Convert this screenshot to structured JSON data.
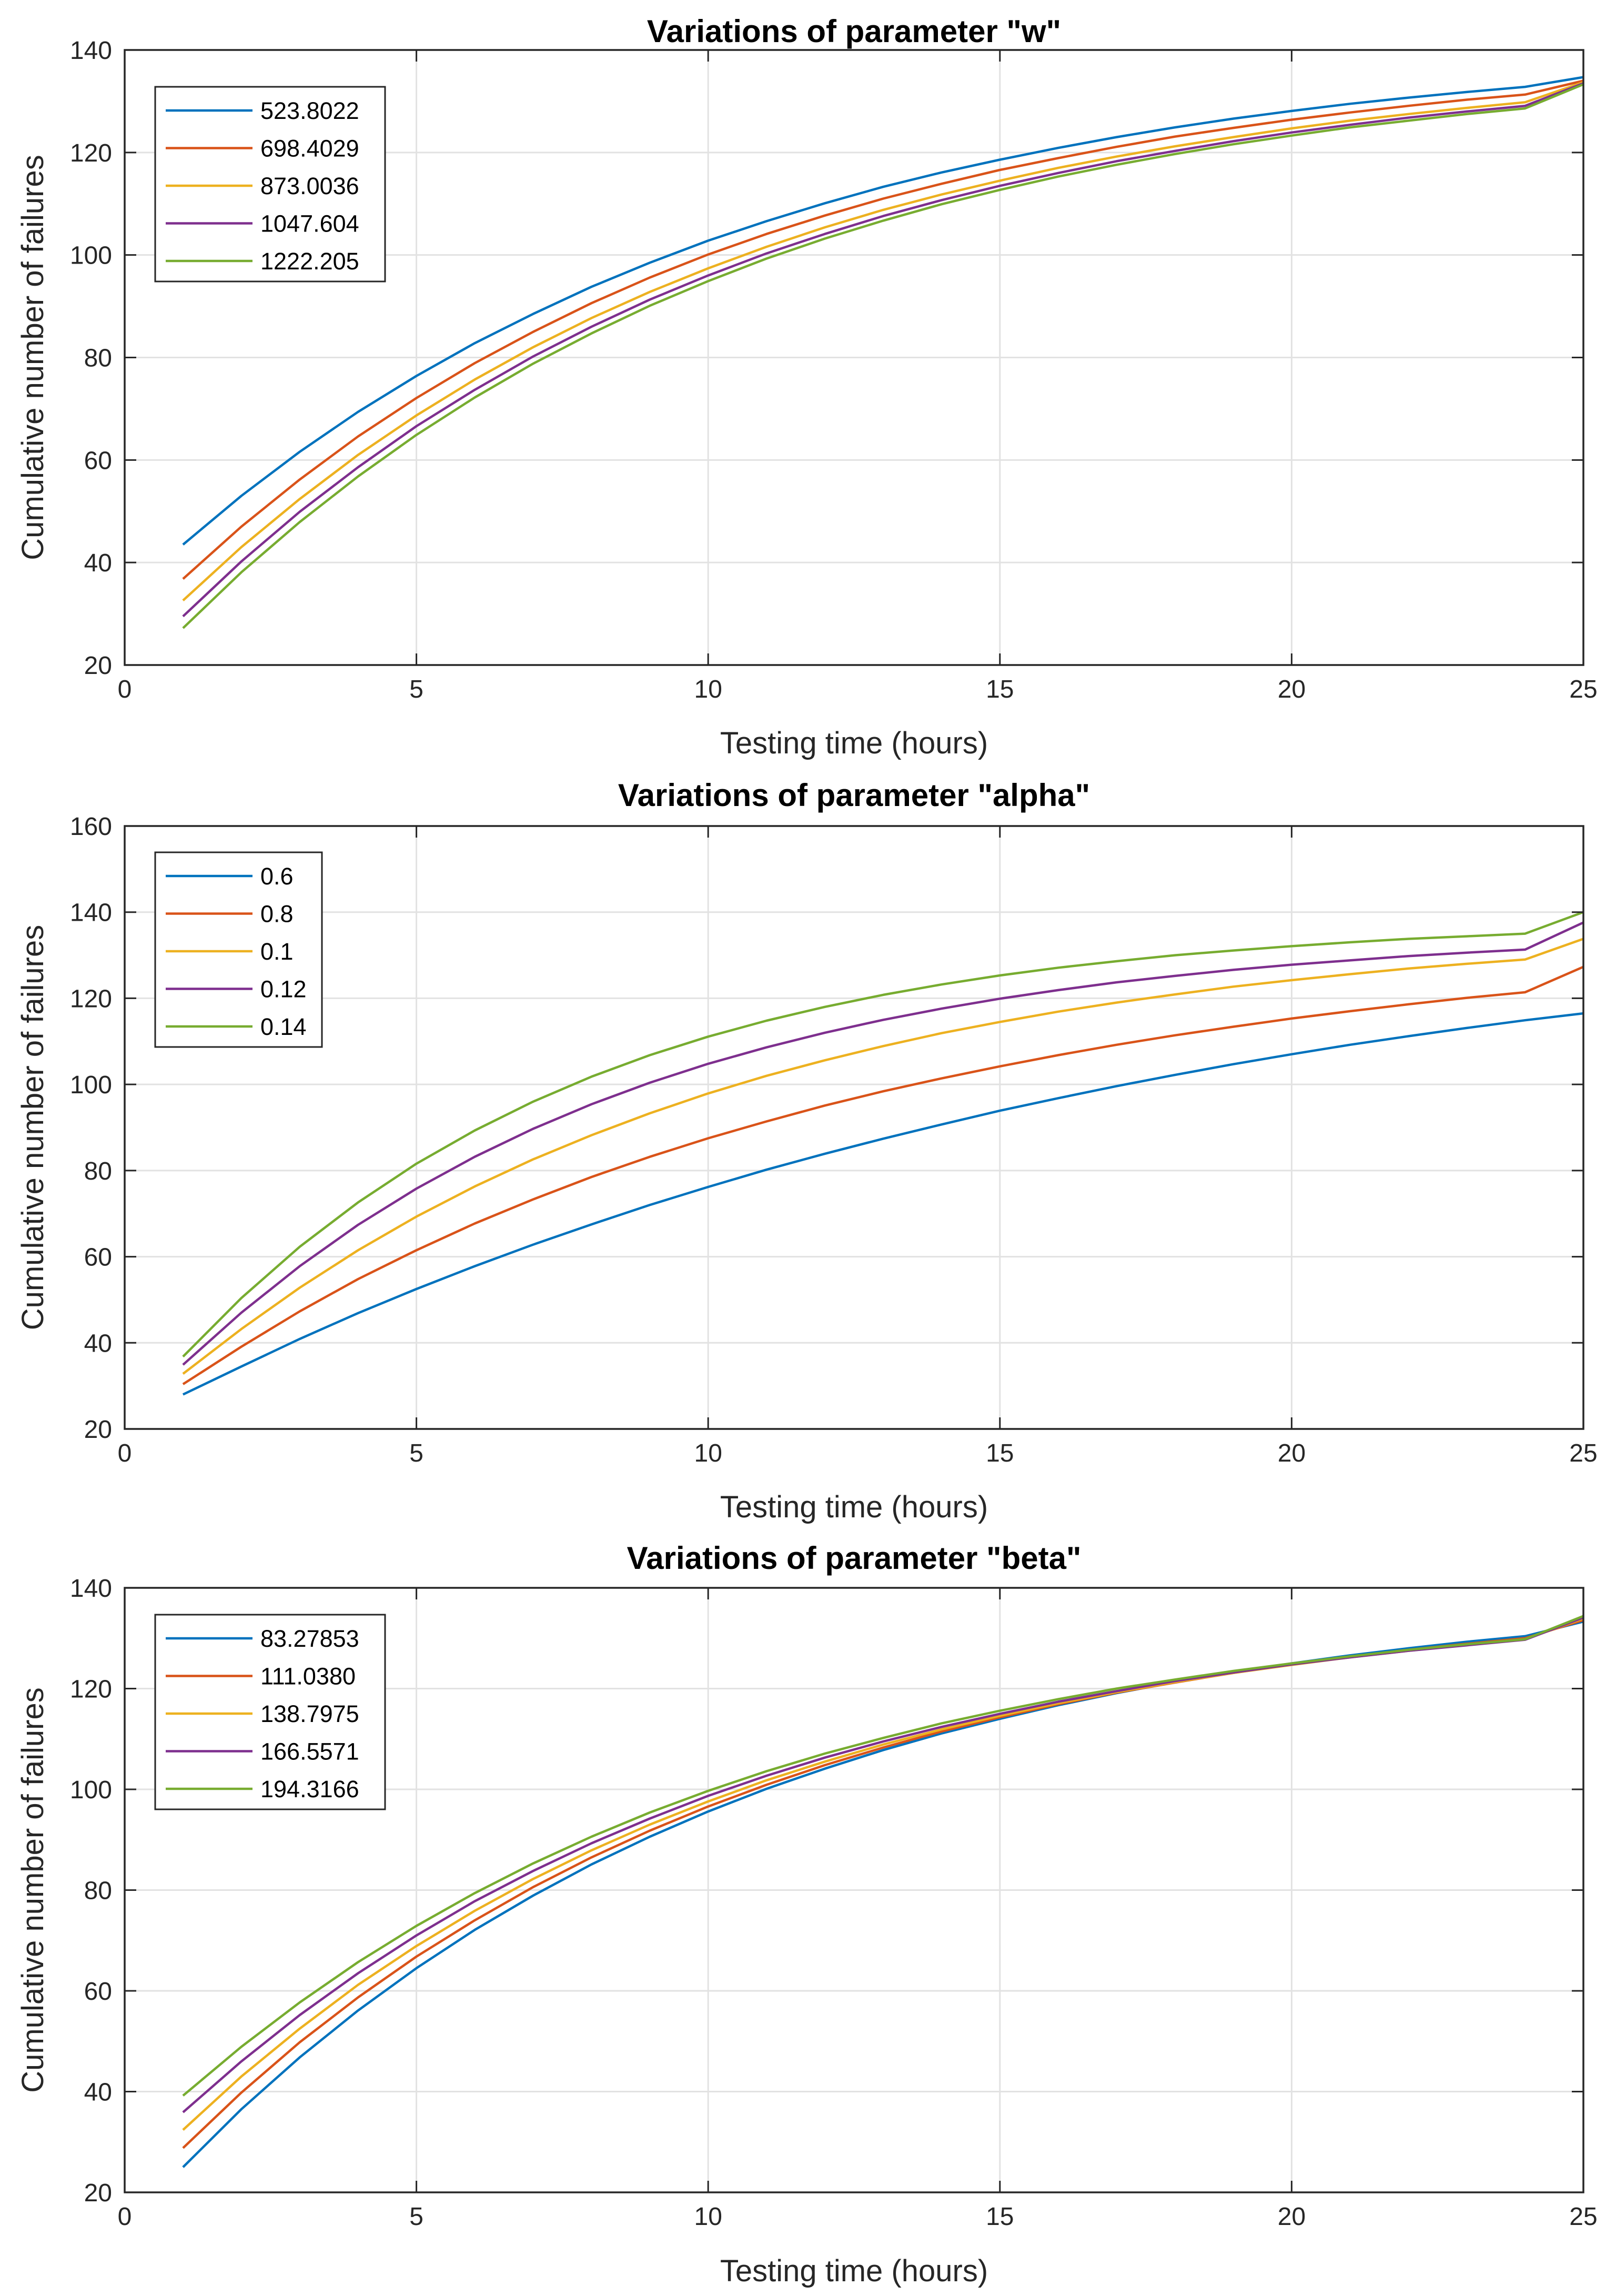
{
  "colors": {
    "series": [
      "#0072BD",
      "#D95319",
      "#EDB120",
      "#7E2F8E",
      "#77AC30"
    ],
    "grid": "#e2e2e2",
    "axis": "#262626"
  },
  "chart_data": [
    {
      "type": "line",
      "title": "Variations of parameter \"w\"",
      "xlabel": "Testing time (hours)",
      "ylabel": "Cumulative number of failures",
      "xlim": [
        0,
        25
      ],
      "ylim": [
        20,
        140
      ],
      "xticks": [
        0,
        5,
        10,
        15,
        20,
        25
      ],
      "yticks": [
        20,
        40,
        60,
        80,
        100,
        120,
        140
      ],
      "grid": true,
      "legend_position": "top-left",
      "x": [
        1,
        2,
        3,
        4,
        5,
        6,
        7,
        8,
        9,
        10,
        11,
        12,
        13,
        14,
        15,
        16,
        17,
        18,
        19,
        20,
        21,
        22,
        23,
        24,
        25
      ],
      "series": [
        {
          "name": "523.8022",
          "values": [
            43.5,
            53.0,
            61.6,
            69.4,
            76.4,
            82.8,
            88.5,
            93.8,
            98.5,
            102.8,
            106.6,
            110.1,
            113.3,
            116.1,
            118.6,
            120.9,
            123.0,
            124.9,
            126.6,
            128.1,
            129.5,
            130.7,
            131.8,
            132.8,
            134.7
          ]
        },
        {
          "name": "698.4029",
          "values": [
            36.8,
            47.0,
            56.2,
            64.6,
            72.1,
            78.9,
            85.0,
            90.6,
            95.6,
            100.1,
            104.1,
            107.7,
            111.0,
            113.9,
            116.6,
            118.9,
            121.1,
            123.1,
            124.8,
            126.4,
            127.8,
            129.1,
            130.3,
            131.3,
            134.0
          ]
        },
        {
          "name": "873.0036",
          "values": [
            32.6,
            43.0,
            52.4,
            61.0,
            68.7,
            75.7,
            82.0,
            87.7,
            92.8,
            97.4,
            101.6,
            105.4,
            108.8,
            111.8,
            114.5,
            117.0,
            119.2,
            121.2,
            123.0,
            124.7,
            126.2,
            127.5,
            128.7,
            129.8,
            133.7
          ]
        },
        {
          "name": "1047.604",
          "values": [
            29.5,
            40.2,
            49.9,
            58.6,
            66.6,
            73.7,
            80.2,
            86.0,
            91.3,
            96.0,
            100.3,
            104.1,
            107.6,
            110.7,
            113.5,
            116.0,
            118.3,
            120.3,
            122.2,
            123.9,
            125.4,
            126.8,
            128.0,
            129.1,
            133.5
          ]
        },
        {
          "name": "1222.205",
          "values": [
            27.2,
            38.1,
            47.9,
            56.8,
            64.9,
            72.2,
            78.8,
            84.7,
            90.1,
            94.9,
            99.3,
            103.2,
            106.7,
            109.9,
            112.7,
            115.3,
            117.6,
            119.7,
            121.6,
            123.3,
            124.9,
            126.2,
            127.5,
            128.6,
            133.3
          ]
        }
      ]
    },
    {
      "type": "line",
      "title": "Variations of parameter \"alpha\"",
      "xlabel": "Testing time (hours)",
      "ylabel": "Cumulative number of failures",
      "xlim": [
        0,
        25
      ],
      "ylim": [
        20,
        160
      ],
      "xticks": [
        0,
        5,
        10,
        15,
        20,
        25
      ],
      "yticks": [
        20,
        40,
        60,
        80,
        100,
        120,
        140,
        160
      ],
      "grid": true,
      "legend_position": "top-left",
      "x": [
        1,
        2,
        3,
        4,
        5,
        6,
        7,
        8,
        9,
        10,
        11,
        12,
        13,
        14,
        15,
        16,
        17,
        18,
        19,
        20,
        21,
        22,
        23,
        24,
        25
      ],
      "series": [
        {
          "name": "0.6",
          "values": [
            28.0,
            34.5,
            40.9,
            46.9,
            52.5,
            57.8,
            62.8,
            67.5,
            72.0,
            76.2,
            80.2,
            83.9,
            87.4,
            90.7,
            93.9,
            96.8,
            99.6,
            102.2,
            104.7,
            107.0,
            109.2,
            111.2,
            113.1,
            114.9,
            116.5
          ]
        },
        {
          "name": "0.8",
          "values": [
            30.4,
            39.1,
            47.3,
            54.8,
            61.5,
            67.7,
            73.3,
            78.5,
            83.2,
            87.5,
            91.4,
            95.1,
            98.4,
            101.4,
            104.2,
            106.8,
            109.2,
            111.4,
            113.4,
            115.3,
            117.0,
            118.6,
            120.1,
            121.4,
            127.3
          ]
        },
        {
          "name": "0.1",
          "values": [
            32.8,
            43.2,
            52.8,
            61.5,
            69.3,
            76.3,
            82.6,
            88.2,
            93.3,
            97.9,
            102.0,
            105.6,
            108.9,
            111.9,
            114.5,
            116.9,
            119.0,
            120.9,
            122.7,
            124.2,
            125.6,
            126.9,
            128.0,
            129.0,
            133.8
          ]
        },
        {
          "name": "0.12",
          "values": [
            34.9,
            47.0,
            57.8,
            67.4,
            75.8,
            83.2,
            89.7,
            95.4,
            100.4,
            104.8,
            108.6,
            112.0,
            115.0,
            117.6,
            119.9,
            121.9,
            123.7,
            125.2,
            126.6,
            127.8,
            128.8,
            129.8,
            130.6,
            131.3,
            137.6
          ]
        },
        {
          "name": "0.14",
          "values": [
            36.8,
            50.4,
            62.3,
            72.6,
            81.6,
            89.3,
            96.0,
            101.8,
            106.8,
            111.1,
            114.8,
            118.0,
            120.8,
            123.2,
            125.3,
            127.1,
            128.6,
            130.0,
            131.1,
            132.1,
            133.0,
            133.8,
            134.4,
            135.0,
            140.0
          ]
        }
      ]
    },
    {
      "type": "line",
      "title": "Variations of parameter \"beta\"",
      "xlabel": "Testing time (hours)",
      "ylabel": "Cumulative number of failures",
      "xlim": [
        0,
        25
      ],
      "ylim": [
        20,
        140
      ],
      "xticks": [
        0,
        5,
        10,
        15,
        20,
        25
      ],
      "yticks": [
        20,
        40,
        60,
        80,
        100,
        120,
        140
      ],
      "grid": true,
      "legend_position": "top-left",
      "x": [
        1,
        2,
        3,
        4,
        5,
        6,
        7,
        8,
        9,
        10,
        11,
        12,
        13,
        14,
        15,
        16,
        17,
        18,
        19,
        20,
        21,
        22,
        23,
        24,
        25
      ],
      "series": [
        {
          "name": "83.27853",
          "values": [
            25.0,
            36.5,
            46.8,
            56.1,
            64.5,
            72.1,
            78.9,
            85.1,
            90.6,
            95.6,
            100.1,
            104.1,
            107.8,
            111.1,
            114.0,
            116.7,
            119.1,
            121.3,
            123.2,
            125.0,
            126.6,
            128.0,
            129.3,
            130.4,
            133.3
          ]
        },
        {
          "name": "111.0380",
          "values": [
            28.8,
            39.8,
            49.8,
            58.7,
            66.8,
            74.0,
            80.6,
            86.5,
            91.8,
            96.6,
            100.9,
            104.8,
            108.3,
            111.5,
            114.3,
            116.9,
            119.2,
            121.2,
            123.1,
            124.8,
            126.3,
            127.7,
            128.9,
            130.0,
            133.6
          ]
        },
        {
          "name": "138.7975",
          "values": [
            32.4,
            43.0,
            52.5,
            61.2,
            68.9,
            75.9,
            82.2,
            87.9,
            93.0,
            97.6,
            101.8,
            105.5,
            108.9,
            111.9,
            114.6,
            117.1,
            119.3,
            121.3,
            123.1,
            124.7,
            126.2,
            127.5,
            128.7,
            129.8,
            133.9
          ]
        },
        {
          "name": "166.5571",
          "values": [
            35.9,
            46.0,
            55.2,
            63.5,
            71.0,
            77.8,
            83.8,
            89.3,
            94.2,
            98.7,
            102.7,
            106.3,
            109.5,
            112.4,
            115.0,
            117.4,
            119.5,
            121.5,
            123.2,
            124.8,
            126.2,
            127.5,
            128.6,
            129.7,
            134.1
          ]
        },
        {
          "name": "194.3166",
          "values": [
            39.2,
            48.9,
            57.7,
            65.7,
            72.9,
            79.4,
            85.3,
            90.6,
            95.4,
            99.7,
            103.6,
            107.1,
            110.2,
            113.1,
            115.6,
            117.9,
            120.0,
            121.8,
            123.5,
            125.0,
            126.4,
            127.7,
            128.8,
            129.8,
            134.4
          ]
        }
      ]
    }
  ]
}
